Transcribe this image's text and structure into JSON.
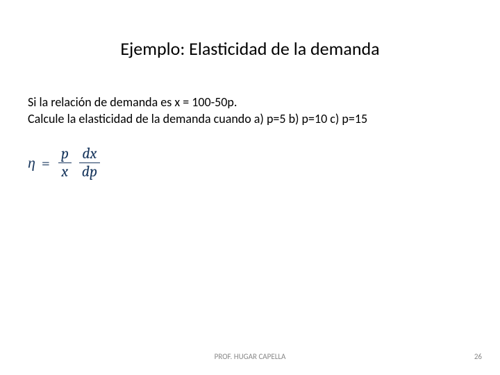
{
  "slide": {
    "title": "Ejemplo: Elasticidad de la demanda",
    "body_line1": "Si la relación de demanda es  x = 100-50p.",
    "body_line2": "Calcule la elasticidad de la demanda cuando  a) p=5   b) p=10   c)  p=15",
    "formula": {
      "lhs": "η",
      "eq": "=",
      "frac1_num": "p",
      "frac1_den": "x",
      "frac2_num": "dx",
      "frac2_den": "dp",
      "color": "#17365d",
      "fontsize": 22
    },
    "footer_author": "PROF. HUGAR CAPELLA",
    "page_number": "26",
    "background": "#ffffff",
    "title_fontsize": 26,
    "body_fontsize": 18,
    "footer_fontsize": 11,
    "footer_color": "#888888"
  }
}
